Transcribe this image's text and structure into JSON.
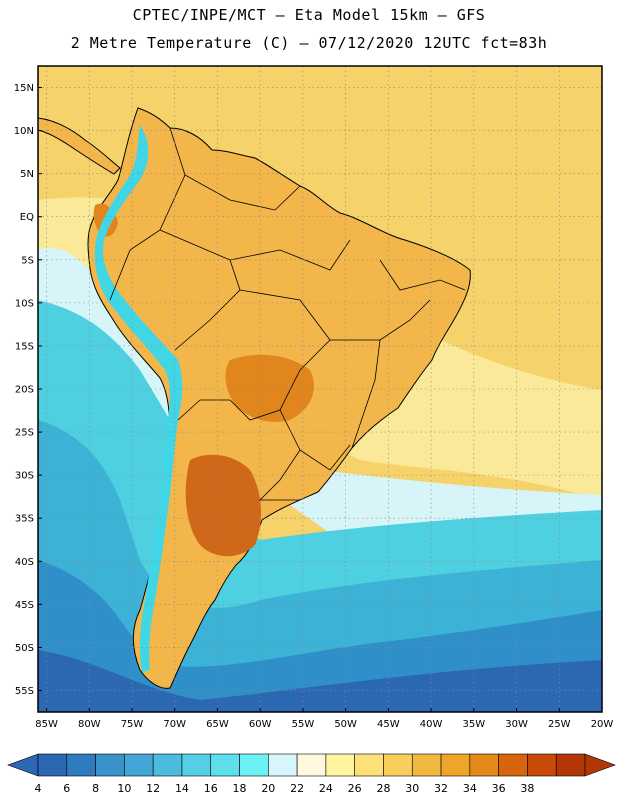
{
  "header": {
    "line1": "CPTEC/INPE/MCT –  Eta Model 15km – GFS",
    "line2": "2 Metre Temperature (C) – 07/12/2020 12UTC fct=83h"
  },
  "map": {
    "lat_ticks": [
      "15N",
      "10N",
      "5N",
      "EQ",
      "5S",
      "10S",
      "15S",
      "20S",
      "25S",
      "30S",
      "35S",
      "40S",
      "45S",
      "50S",
      "55S"
    ],
    "lon_ticks": [
      "85W",
      "80W",
      "75W",
      "70W",
      "65W",
      "60W",
      "55W",
      "50W",
      "45W",
      "40W",
      "35W",
      "30W",
      "25W",
      "20W"
    ],
    "grid": true,
    "colors": {
      "ocean_warm": "#f6d36a",
      "ocean_mid": "#fbe99a",
      "ocean_cool": "#d7f4f8",
      "ocean_cold1": "#4fd0e0",
      "ocean_cold2": "#3cb3d6",
      "ocean_cold3": "#2f8fc9",
      "ocean_cold4": "#2c68b2",
      "land_base": "#f2b64a",
      "land_hot": "#e0861d",
      "land_hotter": "#d0681a",
      "andes": "#40d6e6",
      "borders": "#000000"
    }
  },
  "colorbar": {
    "labels": [
      "4",
      "6",
      "8",
      "10",
      "12",
      "14",
      "16",
      "18",
      "20",
      "22",
      "24",
      "26",
      "28",
      "30",
      "32",
      "34",
      "36",
      "38"
    ],
    "colors": [
      "#2c68b2",
      "#2f7bbf",
      "#3a92cb",
      "#44a6d6",
      "#4cbcde",
      "#55cfe4",
      "#5de0ec",
      "#6cf2f5",
      "#d6f6fb",
      "#fff8df",
      "#fff59e",
      "#fde078",
      "#f8cf5c",
      "#f0b840",
      "#eea52a",
      "#e48a1b",
      "#d8650e",
      "#c84a09",
      "#b23606"
    ]
  }
}
